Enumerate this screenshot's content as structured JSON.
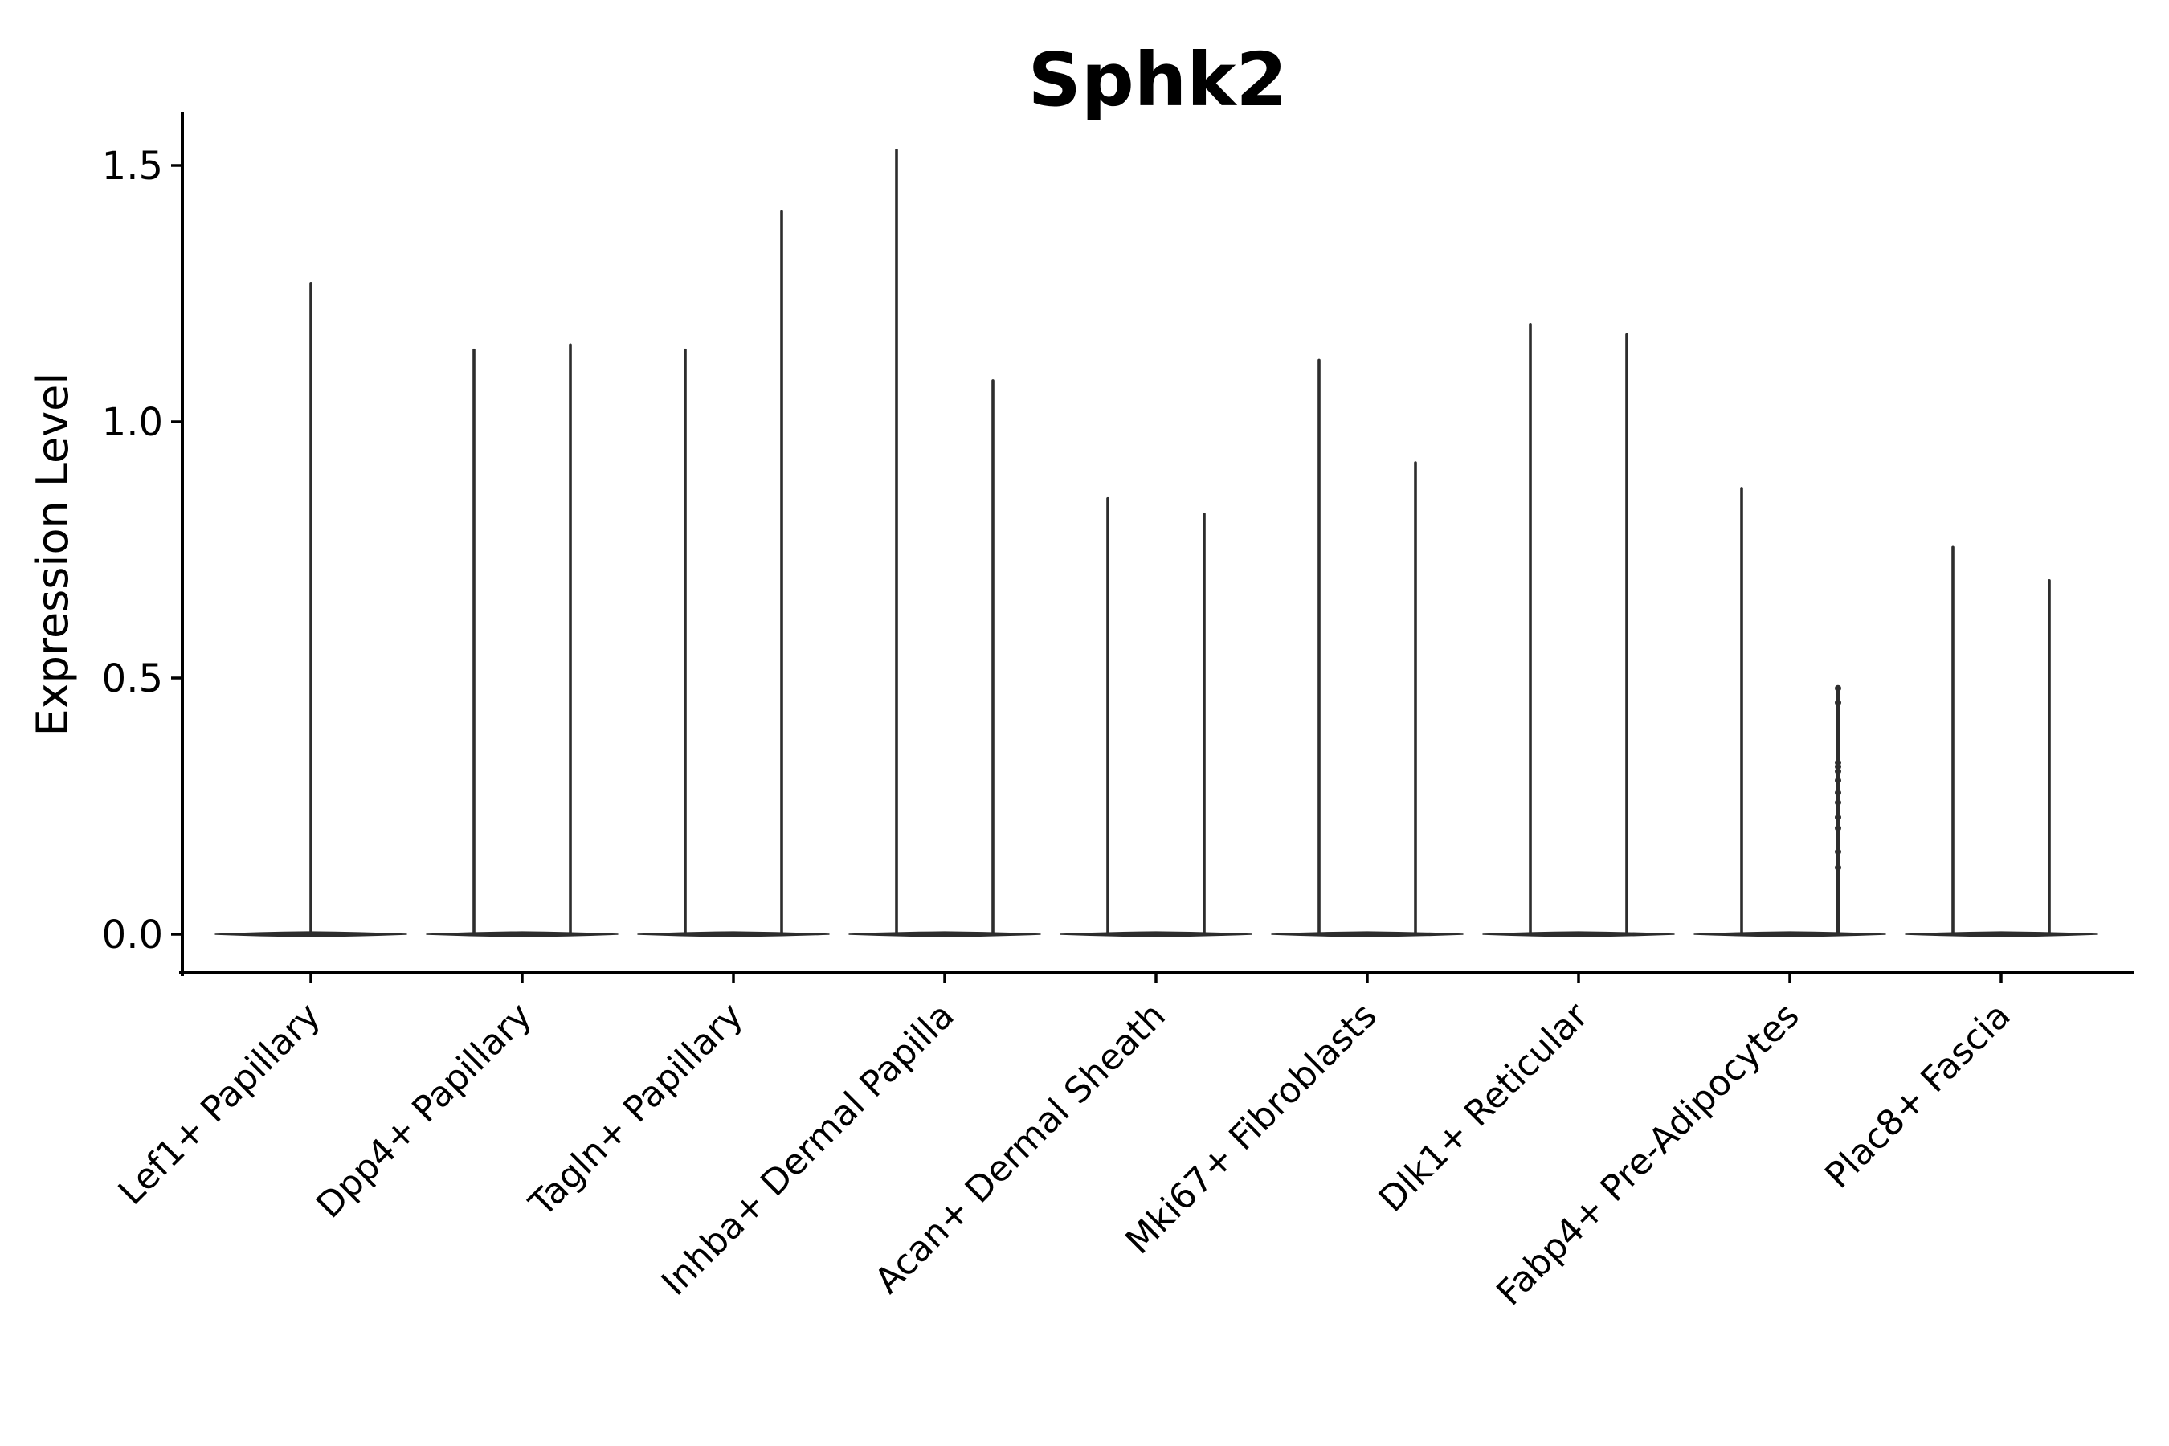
{
  "chart_data": {
    "type": "violin",
    "title": "Sphk2",
    "ylabel": "Expression Level",
    "xlabel": "",
    "ylim": [
      0,
      1.5
    ],
    "yticks": [
      0.0,
      0.5,
      1.0,
      1.5
    ],
    "grid": false,
    "legend": "none",
    "categories": [
      "Lef1+ Papillary",
      "Dpp4+ Papillary",
      "Tagln+ Papillary",
      "Inhba+ Dermal Papilla",
      "Acan+ Dermal Sheath",
      "Mki67+ Fibroblasts",
      "Dlk1+ Reticular",
      "Fabp4+ Pre-Adipocytes",
      "Plac8+ Fascia"
    ],
    "series": [
      {
        "category": "Lef1+ Papillary",
        "violins": [
          {
            "position": "center",
            "max": 1.27
          }
        ]
      },
      {
        "category": "Dpp4+ Papillary",
        "violins": [
          {
            "position": "left",
            "max": 1.14
          },
          {
            "position": "right",
            "max": 1.15
          }
        ]
      },
      {
        "category": "Tagln+ Papillary",
        "violins": [
          {
            "position": "left",
            "max": 1.14
          },
          {
            "position": "right",
            "max": 1.41
          }
        ]
      },
      {
        "category": "Inhba+ Dermal Papilla",
        "violins": [
          {
            "position": "left",
            "max": 1.53
          },
          {
            "position": "right",
            "max": 1.08
          }
        ]
      },
      {
        "category": "Acan+ Dermal Sheath",
        "violins": [
          {
            "position": "left",
            "max": 0.85
          },
          {
            "position": "right",
            "max": 0.82
          }
        ]
      },
      {
        "category": "Mki67+ Fibroblasts",
        "violins": [
          {
            "position": "left",
            "max": 1.12
          },
          {
            "position": "right",
            "max": 0.92
          }
        ]
      },
      {
        "category": "Dlk1+ Reticular",
        "violins": [
          {
            "position": "left",
            "max": 1.19
          },
          {
            "position": "right",
            "max": 1.17
          }
        ]
      },
      {
        "category": "Fabp4+ Pre-Adipocytes",
        "violins": [
          {
            "position": "left",
            "max": 0.87
          },
          {
            "position": "right",
            "max": 0.48,
            "points": [
              0.48,
              0.452,
              0.335,
              0.327,
              0.318,
              0.3,
              0.276,
              0.257,
              0.228,
              0.207,
              0.161,
              0.13
            ]
          }
        ]
      },
      {
        "category": "Plac8+ Fascia",
        "violins": [
          {
            "position": "left",
            "max": 0.755
          },
          {
            "position": "right",
            "max": 0.69
          }
        ]
      }
    ],
    "colors": {
      "line": "#2d2d2d",
      "text": "#000000",
      "background": "#ffffff"
    }
  }
}
